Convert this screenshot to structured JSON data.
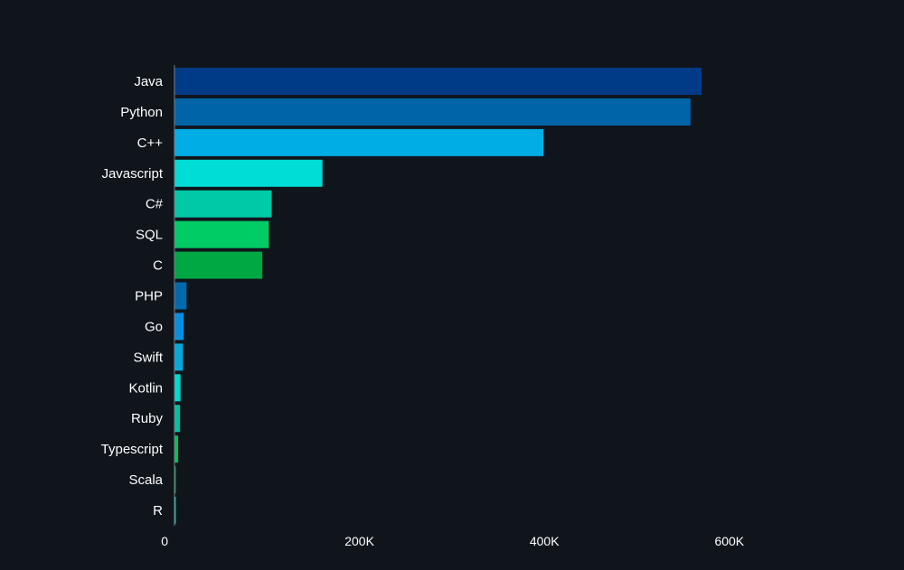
{
  "chart_data": {
    "type": "bar",
    "orientation": "horizontal",
    "title": "",
    "xlabel": "",
    "ylabel": "",
    "xlim": [
      0,
      760000
    ],
    "grid": false,
    "legend": "none",
    "categories": [
      "Java",
      "Python",
      "C++",
      "Javascript",
      "C#",
      "SQL",
      "C",
      "PHP",
      "Go",
      "Swift",
      "Kotlin",
      "Ruby",
      "Typescript",
      "Scala",
      "R"
    ],
    "values": [
      570000,
      558000,
      399000,
      160000,
      105000,
      102000,
      95000,
      13000,
      10000,
      9000,
      6500,
      6000,
      4000,
      1500,
      1000
    ],
    "colors": [
      "#003b88",
      "#0064a8",
      "#00ade4",
      "#00dcd6",
      "#00c9a7",
      "#00cc66",
      "#00a843",
      "#006aad",
      "#0a8fe0",
      "#00acde",
      "#00d9d3",
      "#00c2a2",
      "#00c05e",
      "#00a44a",
      "#00c9bf"
    ],
    "x_ticks": [
      0,
      200000,
      400000,
      600000
    ],
    "x_tick_labels": [
      "0",
      "200K",
      "400K",
      "600K"
    ]
  }
}
